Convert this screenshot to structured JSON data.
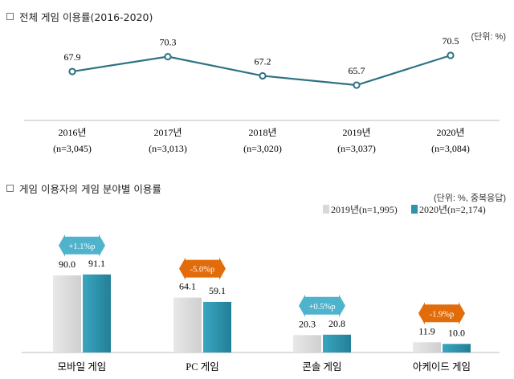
{
  "chart_data": [
    {
      "type": "line",
      "title": "전체 게임 이용률(2016-2020)",
      "unit_note": "(단위: %)",
      "categories": [
        "2016년",
        "2017년",
        "2018년",
        "2019년",
        "2020년"
      ],
      "sample_sizes": [
        "(n=3,045)",
        "(n=3,013)",
        "(n=3,020)",
        "(n=3,037)",
        "(n=3,084)"
      ],
      "values": [
        67.9,
        70.3,
        67.2,
        65.7,
        70.5
      ],
      "ylim": [
        60,
        72
      ],
      "grid": false,
      "color": "#2e7283"
    },
    {
      "type": "bar",
      "title": "게임 이용자의 게임 분야별 이용률",
      "unit_note": "(단위: %, 중복응답)",
      "categories": [
        "모바일 게임",
        "PC 게임",
        "콘솔 게임",
        "아케이드 게임"
      ],
      "series": [
        {
          "name": "2019년(n=1,995)",
          "values": [
            90.0,
            64.1,
            20.3,
            11.9
          ],
          "color": "#d9d9d9"
        },
        {
          "name": "2020년(n=2,174)",
          "values": [
            91.1,
            59.1,
            20.8,
            10.0
          ],
          "color": "#2f93ad"
        }
      ],
      "changes": [
        {
          "label": "+1.1%p",
          "color": "#4fb3cc"
        },
        {
          "label": "-5.0%p",
          "color": "#e36c0a"
        },
        {
          "label": "+0.5%p",
          "color": "#4fb3cc"
        },
        {
          "label": "-1.9%p",
          "color": "#e36c0a"
        }
      ],
      "ylim": [
        0,
        100
      ],
      "legend": "top-right",
      "grid": false
    }
  ]
}
